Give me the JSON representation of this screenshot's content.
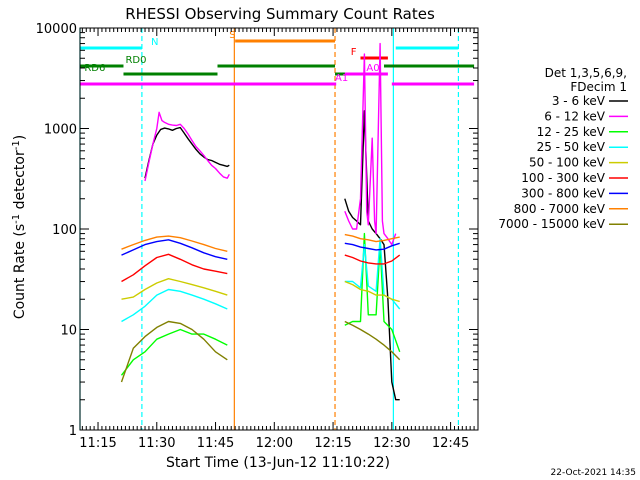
{
  "chart_data": {
    "type": "line",
    "title": "RHESSI Observing Summary Count Rates",
    "xlabel": "Start Time (13-Jun-12 11:10:22)",
    "ylabel_main": "Count Rate (s",
    "ylabel_sup1": "-1",
    "ylabel_mid": " detector",
    "ylabel_sup2": "-1",
    "ylabel_end": ")",
    "yscale": "log",
    "ylim": [
      1,
      10000
    ],
    "xlim_minutes": [
      670.4,
      772
    ],
    "xticks": [
      {
        "t": 675,
        "label": "11:15"
      },
      {
        "t": 690,
        "label": "11:30"
      },
      {
        "t": 705,
        "label": "11:45"
      },
      {
        "t": 720,
        "label": "12:00"
      },
      {
        "t": 735,
        "label": "12:15"
      },
      {
        "t": 750,
        "label": "12:30"
      },
      {
        "t": 765,
        "label": "12:45"
      }
    ],
    "yticks": [
      {
        "v": 1,
        "label": "1"
      },
      {
        "v": 10,
        "label": "10"
      },
      {
        "v": 100,
        "label": "100"
      },
      {
        "v": 1000,
        "label": "1000"
      },
      {
        "v": 10000,
        "label": "10000"
      }
    ],
    "legend_header": [
      "Det 1,3,5,6,9,",
      "FDecim 1"
    ],
    "series": [
      {
        "name": "3 - 6 keV",
        "color": "#000000",
        "seg1": [
          [
            687,
            320
          ],
          [
            688,
            480
          ],
          [
            689,
            700
          ],
          [
            690,
            860
          ],
          [
            691,
            980
          ],
          [
            692,
            1010
          ],
          [
            693,
            990
          ],
          [
            694,
            960
          ],
          [
            695,
            1000
          ],
          [
            696,
            1020
          ],
          [
            697,
            900
          ],
          [
            698,
            790
          ],
          [
            699,
            700
          ],
          [
            700,
            620
          ],
          [
            701,
            560
          ],
          [
            702,
            520
          ],
          [
            703,
            490
          ],
          [
            704,
            480
          ],
          [
            705,
            460
          ],
          [
            706,
            440
          ],
          [
            707,
            430
          ],
          [
            708,
            420
          ],
          [
            708.5,
            430
          ]
        ],
        "seg2": [
          [
            738,
            200
          ],
          [
            739,
            150
          ],
          [
            740,
            130
          ],
          [
            741,
            120
          ],
          [
            742,
            110
          ],
          [
            743,
            1500
          ],
          [
            744,
            120
          ],
          [
            745,
            100
          ],
          [
            746,
            90
          ],
          [
            747,
            80
          ],
          [
            748,
            70
          ],
          [
            749,
            20
          ],
          [
            750,
            3
          ],
          [
            751,
            2
          ],
          [
            752,
            2
          ]
        ]
      },
      {
        "name": "6 - 12 keV",
        "color": "#ff00ff",
        "seg1": [
          [
            687,
            300
          ],
          [
            688,
            460
          ],
          [
            689,
            700
          ],
          [
            690,
            1000
          ],
          [
            690.6,
            1450
          ],
          [
            691.3,
            1200
          ],
          [
            692,
            1150
          ],
          [
            693,
            1100
          ],
          [
            694,
            1080
          ],
          [
            695,
            1070
          ],
          [
            696,
            1100
          ],
          [
            697,
            1000
          ],
          [
            698,
            880
          ],
          [
            699,
            760
          ],
          [
            700,
            660
          ],
          [
            701,
            600
          ],
          [
            702,
            540
          ],
          [
            703,
            480
          ],
          [
            704,
            430
          ],
          [
            705,
            400
          ],
          [
            706,
            360
          ],
          [
            707,
            330
          ],
          [
            708,
            320
          ],
          [
            708.5,
            350
          ]
        ],
        "seg2": [
          [
            738,
            150
          ],
          [
            739,
            120
          ],
          [
            740,
            100
          ],
          [
            741,
            100
          ],
          [
            742,
            200
          ],
          [
            743,
            5500
          ],
          [
            743.6,
            150
          ],
          [
            744,
            110
          ],
          [
            745,
            800
          ],
          [
            745.6,
            120
          ],
          [
            746,
            90
          ],
          [
            747,
            7000
          ],
          [
            747.6,
            120
          ],
          [
            748,
            90
          ],
          [
            749,
            80
          ],
          [
            750,
            70
          ],
          [
            751,
            90
          ]
        ]
      },
      {
        "name": "12 - 25 keV",
        "color": "#00ff00",
        "seg1": [
          [
            681,
            3.5
          ],
          [
            684,
            5
          ],
          [
            687,
            6
          ],
          [
            690,
            8
          ],
          [
            693,
            9
          ],
          [
            696,
            10
          ],
          [
            699,
            9
          ],
          [
            702,
            9
          ],
          [
            705,
            8
          ],
          [
            708,
            7
          ]
        ],
        "seg2": [
          [
            738,
            11
          ],
          [
            740,
            12
          ],
          [
            742,
            12
          ],
          [
            743,
            90
          ],
          [
            744,
            14
          ],
          [
            746,
            14
          ],
          [
            747,
            70
          ],
          [
            748,
            12
          ],
          [
            750,
            10
          ],
          [
            752,
            6
          ]
        ]
      },
      {
        "name": "25 - 50 keV",
        "color": "#00ffff",
        "seg1": [
          [
            681,
            12
          ],
          [
            684,
            14
          ],
          [
            687,
            17
          ],
          [
            690,
            22
          ],
          [
            693,
            25
          ],
          [
            696,
            24
          ],
          [
            699,
            22
          ],
          [
            702,
            20
          ],
          [
            705,
            18
          ],
          [
            708,
            16
          ]
        ],
        "seg2": [
          [
            738,
            30
          ],
          [
            740,
            30
          ],
          [
            742,
            26
          ],
          [
            743,
            70
          ],
          [
            744,
            27
          ],
          [
            746,
            24
          ],
          [
            747,
            80
          ],
          [
            748,
            22
          ],
          [
            750,
            20
          ],
          [
            752,
            16
          ]
        ]
      },
      {
        "name": "50 - 100 keV",
        "color": "#cccc00",
        "seg1": [
          [
            681,
            20
          ],
          [
            684,
            21
          ],
          [
            687,
            25
          ],
          [
            690,
            29
          ],
          [
            693,
            32
          ],
          [
            696,
            30
          ],
          [
            699,
            28
          ],
          [
            702,
            26
          ],
          [
            705,
            24
          ],
          [
            708,
            22
          ]
        ],
        "seg2": [
          [
            738,
            30
          ],
          [
            740,
            28
          ],
          [
            742,
            25
          ],
          [
            744,
            24
          ],
          [
            746,
            22
          ],
          [
            748,
            22
          ],
          [
            750,
            20
          ],
          [
            752,
            19
          ]
        ]
      },
      {
        "name": "100 - 300 keV",
        "color": "#ff0000",
        "seg1": [
          [
            681,
            30
          ],
          [
            684,
            35
          ],
          [
            687,
            43
          ],
          [
            690,
            52
          ],
          [
            693,
            56
          ],
          [
            696,
            50
          ],
          [
            699,
            44
          ],
          [
            702,
            40
          ],
          [
            705,
            38
          ],
          [
            708,
            36
          ]
        ],
        "seg2": [
          [
            738,
            55
          ],
          [
            740,
            52
          ],
          [
            742,
            48
          ],
          [
            744,
            46
          ],
          [
            746,
            45
          ],
          [
            748,
            45
          ],
          [
            750,
            48
          ],
          [
            752,
            55
          ]
        ]
      },
      {
        "name": "300 - 800 keV",
        "color": "#0000ff",
        "seg1": [
          [
            681,
            55
          ],
          [
            684,
            62
          ],
          [
            687,
            70
          ],
          [
            690,
            75
          ],
          [
            693,
            78
          ],
          [
            696,
            72
          ],
          [
            699,
            65
          ],
          [
            702,
            58
          ],
          [
            705,
            53
          ],
          [
            708,
            50
          ]
        ],
        "seg2": [
          [
            738,
            72
          ],
          [
            740,
            70
          ],
          [
            742,
            66
          ],
          [
            744,
            64
          ],
          [
            746,
            62
          ],
          [
            748,
            63
          ],
          [
            750,
            68
          ],
          [
            752,
            72
          ]
        ]
      },
      {
        "name": "800 - 7000 keV",
        "color": "#ff8000",
        "seg1": [
          [
            681,
            63
          ],
          [
            684,
            70
          ],
          [
            687,
            77
          ],
          [
            690,
            83
          ],
          [
            693,
            85
          ],
          [
            696,
            82
          ],
          [
            699,
            76
          ],
          [
            702,
            70
          ],
          [
            705,
            64
          ],
          [
            708,
            60
          ]
        ],
        "seg2": [
          [
            738,
            88
          ],
          [
            740,
            85
          ],
          [
            742,
            80
          ],
          [
            744,
            78
          ],
          [
            746,
            75
          ],
          [
            748,
            77
          ],
          [
            750,
            80
          ],
          [
            752,
            83
          ]
        ]
      },
      {
        "name": "7000 - 15000 keV",
        "color": "#808000",
        "seg1": [
          [
            681,
            3
          ],
          [
            684,
            6.5
          ],
          [
            687,
            8.5
          ],
          [
            690,
            10.5
          ],
          [
            693,
            12
          ],
          [
            696,
            11.5
          ],
          [
            699,
            10
          ],
          [
            702,
            8
          ],
          [
            705,
            6
          ],
          [
            708,
            5
          ]
        ],
        "seg2": [
          [
            738,
            12
          ],
          [
            740,
            11
          ],
          [
            742,
            10
          ],
          [
            744,
            9
          ],
          [
            746,
            8
          ],
          [
            748,
            7
          ],
          [
            750,
            6
          ],
          [
            752,
            5
          ]
        ]
      }
    ],
    "flags": [
      {
        "code": "N",
        "color": "#00ffff",
        "row": "N",
        "segs": [
          [
            670.4,
            686.2
          ],
          [
            751,
            767
          ]
        ],
        "label_at": 688
      },
      {
        "code": "RD0",
        "color": "#008000",
        "row": "RD0",
        "segs": [
          [
            670.4,
            681.5
          ],
          [
            705.5,
            735.5
          ],
          [
            748,
            771
          ]
        ],
        "label_at": 681.5
      },
      {
        "code": "RD6",
        "color": "#008000",
        "row": "RD6",
        "segs": [
          [
            681.5,
            705.5
          ],
          [
            735.5,
            748
          ]
        ],
        "label_at": 671
      },
      {
        "code": "A1",
        "color": "#ff00ff",
        "row": "A1",
        "segs": [
          [
            670.4,
            735.8
          ],
          [
            750,
            771
          ]
        ],
        "label_at": 735
      },
      {
        "code": "A0",
        "color": "#ff00ff",
        "row": "A0",
        "segs": [
          [
            738,
            749
          ]
        ],
        "label_at": 743
      },
      {
        "code": "S",
        "color": "#ff8000",
        "row": "S",
        "segs": [
          [
            710,
            735.5
          ]
        ],
        "label_at": 708
      },
      {
        "code": "F",
        "color": "#ff0000",
        "row": "F",
        "segs": [
          [
            742,
            749
          ]
        ],
        "label_at": 739
      }
    ],
    "vlines": [
      {
        "t": 670.4,
        "color": "#00ffff",
        "dash": false
      },
      {
        "t": 686.2,
        "color": "#00ffff",
        "dash": true
      },
      {
        "t": 709.8,
        "color": "#ff8000",
        "dash": false
      },
      {
        "t": 735.5,
        "color": "#ff8000",
        "dash": true
      },
      {
        "t": 750.4,
        "color": "#00ffff",
        "dash": false
      },
      {
        "t": 767,
        "color": "#00ffff",
        "dash": true
      }
    ]
  },
  "footer_date": "22-Oct-2021 14:35"
}
